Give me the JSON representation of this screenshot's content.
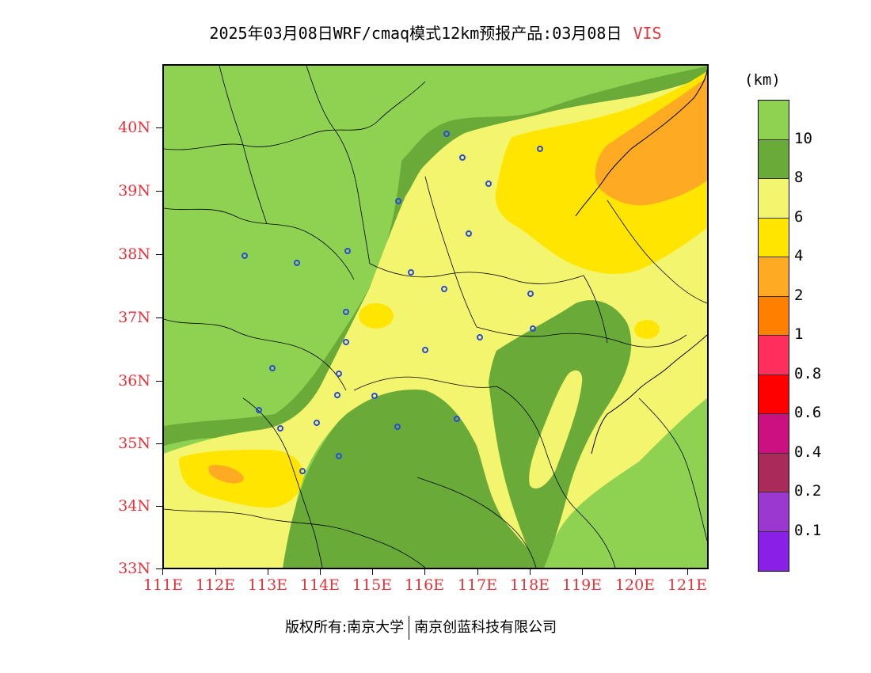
{
  "title": {
    "main": "2025年03月08日WRF/cmaq模式12km预报产品:03月08日",
    "variable": "VIS"
  },
  "axes": {
    "lat_labels": [
      "40N",
      "39N",
      "38N",
      "37N",
      "36N",
      "35N",
      "34N",
      "33N"
    ],
    "lon_labels": [
      "111E",
      "112E",
      "113E",
      "114E",
      "115E",
      "116E",
      "117E",
      "118E",
      "119E",
      "120E",
      "121E"
    ]
  },
  "colorbar": {
    "unit": "(km)",
    "labels": [
      "10",
      "8",
      "6",
      "4",
      "2",
      "1",
      "0.8",
      "0.6",
      "0.4",
      "0.2",
      "0.1"
    ],
    "colors": [
      "#8fd150",
      "#6aaa38",
      "#f3f56e",
      "#ffe500",
      "#ffaa23",
      "#ff8000",
      "#ff2e5c",
      "#ff0000",
      "#cc1080",
      "#aa2a5a",
      "#9a38d0",
      "#8a20e8"
    ]
  },
  "map_colors": {
    "vis_gt10": "#8fd150",
    "vis_8_10": "#6aaa38",
    "vis_6_8": "#f3f56e",
    "vis_4_6": "#ffe500",
    "vis_2_4": "#ffaa23",
    "station_marker": "#2a4bd7"
  },
  "footer": {
    "copyright": "版权所有:南京大学",
    "company": "南京创蓝科技有限公司"
  }
}
